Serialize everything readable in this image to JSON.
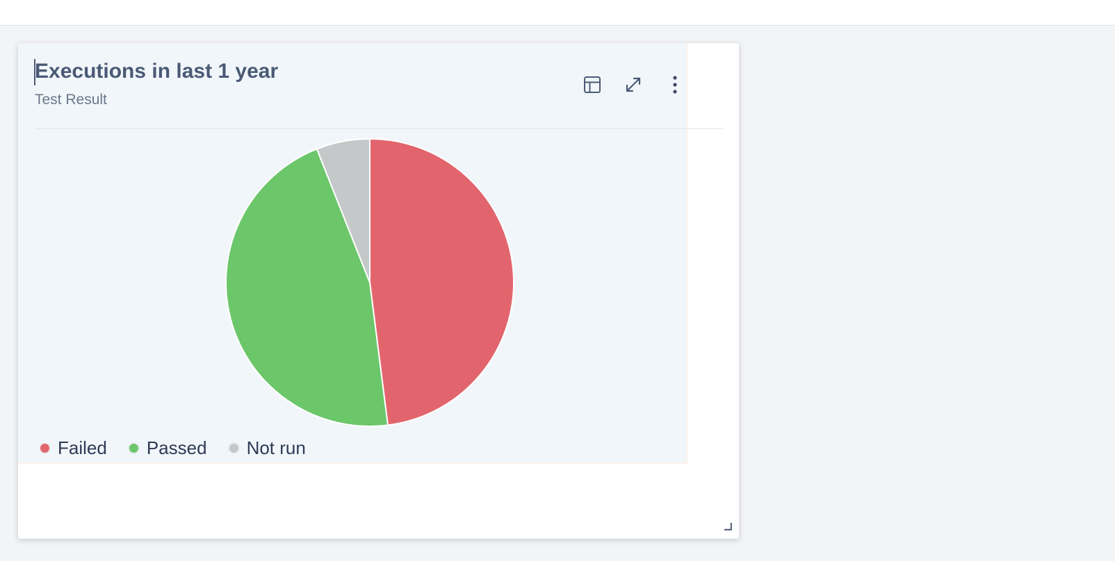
{
  "card": {
    "title": "Executions in last 1 year",
    "subtitle": "Test Result",
    "actions": {
      "table_icon": "table-icon",
      "expand_icon": "expand-icon",
      "more_icon": "more-vertical-icon",
      "resize_icon": "resize-handle-icon"
    }
  },
  "chart_data": {
    "type": "pie",
    "title": "Executions in last 1 year",
    "subtitle": "Test Result",
    "categories": [
      "Failed",
      "Passed",
      "Not run"
    ],
    "values": [
      48,
      46,
      6
    ],
    "colors": [
      "#e2656d",
      "#6cc66a",
      "#c5c8c8"
    ],
    "start_angle_deg": 0,
    "direction": "clockwise",
    "legend_position": "bottom-left"
  }
}
